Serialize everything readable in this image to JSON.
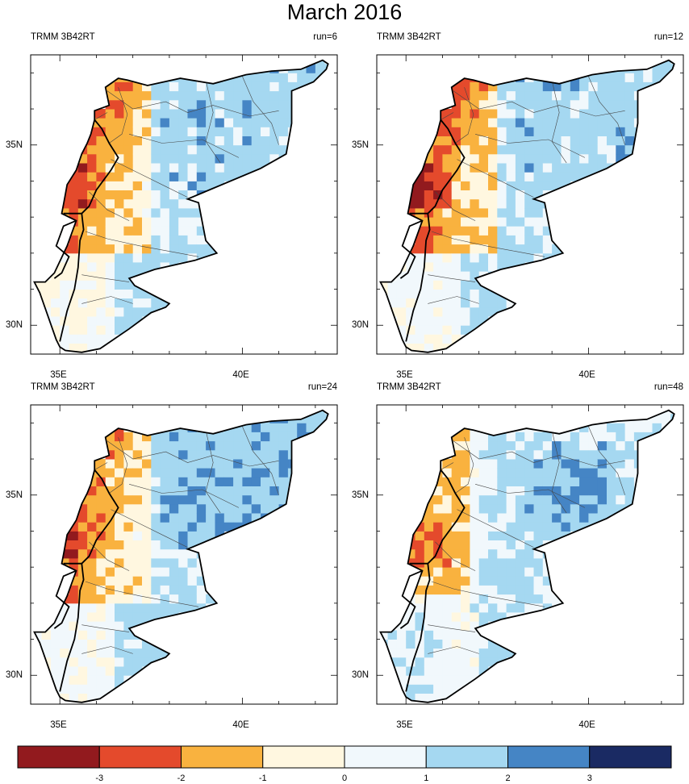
{
  "title": "March 2016",
  "panels": [
    {
      "left_label": "TRMM 3B42RT",
      "right_label": "run=6",
      "pattern": 0
    },
    {
      "left_label": "TRMM 3B42RT",
      "right_label": "run=12",
      "pattern": 1
    },
    {
      "left_label": "TRMM 3B42RT",
      "right_label": "run=24",
      "pattern": 2
    },
    {
      "left_label": "TRMM 3B42RT",
      "right_label": "run=48",
      "pattern": 3
    }
  ],
  "axes": {
    "lon_range": [
      34.2,
      42.6
    ],
    "lat_range": [
      29.2,
      37.5
    ],
    "x_ticks": [
      {
        "value": 35,
        "label": "35E"
      },
      {
        "value": 40,
        "label": "40E"
      }
    ],
    "y_ticks": [
      {
        "value": 35,
        "label": "35N"
      },
      {
        "value": 30,
        "label": "30N"
      }
    ]
  },
  "colorbar": {
    "levels": [
      -3,
      -2,
      -1,
      0,
      1,
      2,
      3
    ],
    "tick_labels": [
      "-3",
      "-2",
      "-1",
      "0",
      "1",
      "2",
      "3"
    ],
    "colors": [
      "#921a1e",
      "#e44a2c",
      "#f9b23f",
      "#fff7e0",
      "#f1f8fc",
      "#a5d8f1",
      "#4585c5",
      "#1a2a63"
    ]
  }
}
